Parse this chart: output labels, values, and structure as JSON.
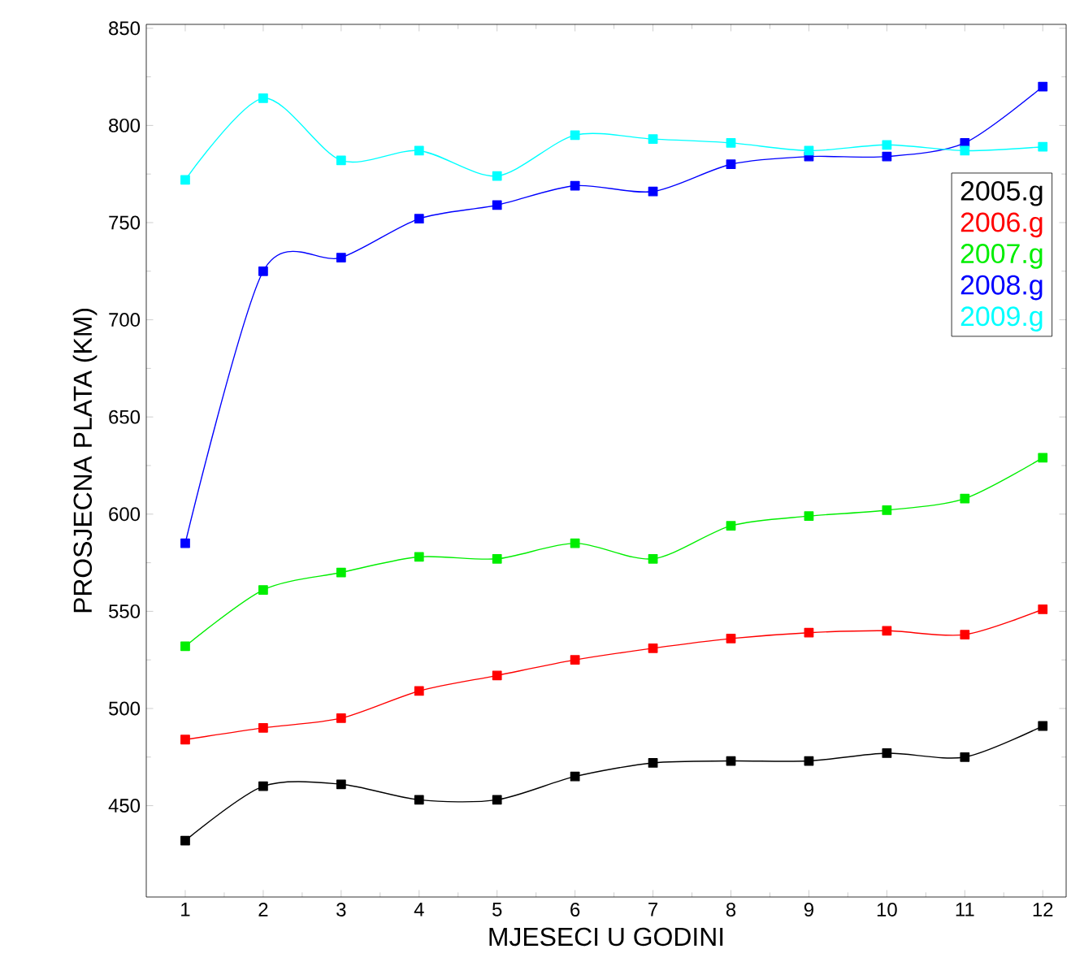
{
  "chart_data": {
    "type": "line",
    "xlabel": "MJESECI U GODINI",
    "ylabel": "PROSJECNA PLATA (KM)",
    "x": [
      1,
      2,
      3,
      4,
      5,
      6,
      7,
      8,
      9,
      10,
      11,
      12
    ],
    "xlim": [
      0.5,
      12.3
    ],
    "xticks": [
      1,
      2,
      3,
      4,
      5,
      6,
      7,
      8,
      9,
      10,
      11,
      12
    ],
    "ylim": [
      403,
      852
    ],
    "yticks": [
      450,
      500,
      550,
      600,
      650,
      700,
      750,
      800,
      850
    ],
    "marker": "square",
    "line_style": "solid",
    "grid": false,
    "legend": "right",
    "series": [
      {
        "name": "2005.g",
        "color": "#000000",
        "values": [
          432,
          460,
          461,
          453,
          453,
          465,
          472,
          473,
          473,
          477,
          475,
          491
        ]
      },
      {
        "name": "2006.g",
        "color": "#ff0000",
        "values": [
          484,
          490,
          495,
          509,
          517,
          525,
          531,
          536,
          539,
          540,
          538,
          551
        ]
      },
      {
        "name": "2007.g",
        "color": "#00ee00",
        "values": [
          532,
          561,
          570,
          578,
          577,
          585,
          577,
          594,
          599,
          602,
          608,
          629
        ]
      },
      {
        "name": "2008.g",
        "color": "#0000ff",
        "values": [
          585,
          725,
          732,
          752,
          759,
          769,
          766,
          780,
          784,
          784,
          791,
          820
        ]
      },
      {
        "name": "2009.g",
        "color": "#00ffff",
        "values": [
          772,
          814,
          782,
          787,
          774,
          795,
          793,
          791,
          787,
          790,
          787,
          789
        ]
      }
    ]
  }
}
